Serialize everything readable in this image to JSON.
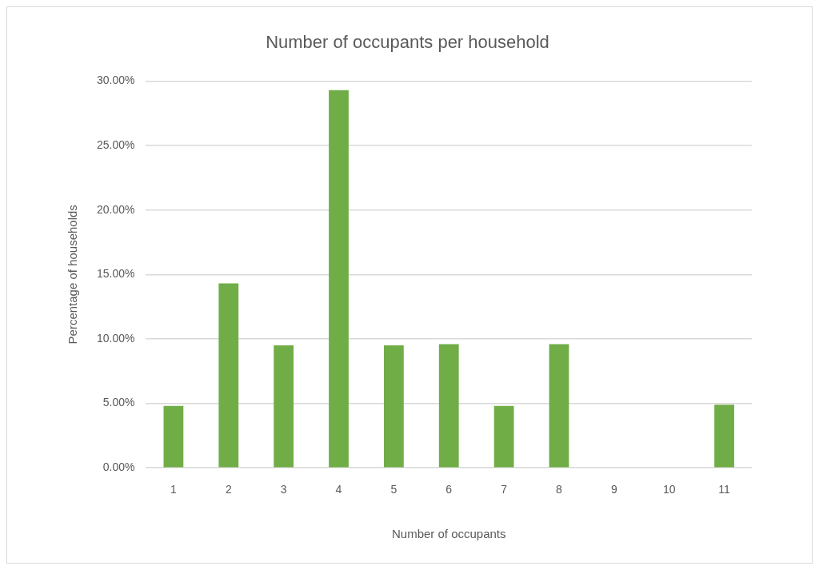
{
  "chart_data": {
    "type": "bar",
    "title": "Number of occupants per household",
    "xlabel": "Number of occupants",
    "ylabel": "Percentage of households",
    "categories": [
      "1",
      "2",
      "3",
      "4",
      "5",
      "6",
      "7",
      "8",
      "9",
      "10",
      "11"
    ],
    "values": [
      4.8,
      14.3,
      9.5,
      29.3,
      9.5,
      9.6,
      4.8,
      9.6,
      0,
      0,
      4.9
    ],
    "color": "#70ad47",
    "ylim": [
      0,
      30
    ],
    "yticks": [
      {
        "value": 0,
        "label": "0.00%"
      },
      {
        "value": 5,
        "label": "5.00%"
      },
      {
        "value": 10,
        "label": "10.00%"
      },
      {
        "value": 15,
        "label": "15.00%"
      },
      {
        "value": 20,
        "label": "20.00%"
      },
      {
        "value": 25,
        "label": "25.00%"
      },
      {
        "value": 30,
        "label": "30.00%"
      }
    ],
    "grid": "y"
  }
}
